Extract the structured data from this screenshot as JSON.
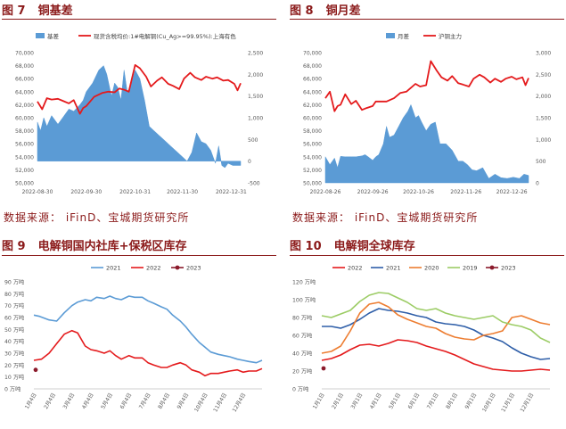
{
  "figures": [
    {
      "number": "图 7",
      "title": "铜基差"
    },
    {
      "number": "图 8",
      "title": "铜月差"
    },
    {
      "number": "图 9",
      "title": "电解铜国内社库+保税区库存"
    },
    {
      "number": "图 10",
      "title": "电解铜全球库存"
    }
  ],
  "sources": [
    "数据来源： iFinD、宝城期货研究所",
    "数据来源： iFinD、宝城期货研究所"
  ],
  "colors": {
    "area": "#5b9bd5",
    "red": "#e41a1c",
    "title": "#8b1a1a"
  },
  "chart_data": [
    {
      "type": "area",
      "title": "",
      "xlabel": "",
      "ylabel": "",
      "x_ticks": [
        "2022-08-30",
        "2022-09-30",
        "2022-10-31",
        "2022-11-30",
        "2022-12-31"
      ],
      "x_range": [
        "2022-08-30",
        "2023-01-06"
      ],
      "ylim": [
        50000,
        70000
      ],
      "y_ticks": [
        50000,
        52000,
        54000,
        56000,
        58000,
        60000,
        62000,
        64000,
        66000,
        68000,
        70000
      ],
      "y2lim": [
        -500,
        2500
      ],
      "y2_ticks": [
        -500,
        0,
        500,
        1000,
        1500,
        2000,
        2500
      ],
      "legend_position": "top",
      "series": [
        {
          "name": "基差",
          "kind": "area",
          "axis": "right",
          "color": "#5b9bd5",
          "x": [
            "2022-08-30",
            "2022-09-01",
            "2022-09-03",
            "2022-09-05",
            "2022-09-08",
            "2022-09-12",
            "2022-09-15",
            "2022-09-19",
            "2022-09-22",
            "2022-09-26",
            "2022-09-28",
            "2022-09-30",
            "2022-10-04",
            "2022-10-08",
            "2022-10-11",
            "2022-10-13",
            "2022-10-16",
            "2022-10-18",
            "2022-10-20",
            "2022-10-22",
            "2022-10-24",
            "2022-10-26",
            "2022-10-28",
            "2022-10-31",
            "2022-11-03",
            "2022-11-06",
            "2022-11-09",
            "2022-11-12",
            "2022-11-15",
            "2022-11-18",
            "2022-11-21",
            "2022-11-24",
            "2022-11-27",
            "2022-11-30",
            "2022-12-03",
            "2022-12-06",
            "2022-12-09",
            "2022-12-12",
            "2022-12-15",
            "2022-12-18",
            "2022-12-21",
            "2022-12-23",
            "2022-12-25",
            "2022-12-27",
            "2022-12-29",
            "2023-01-01",
            "2023-01-04",
            "2023-01-06"
          ],
          "values": [
            900,
            700,
            1000,
            800,
            1050,
            850,
            1000,
            1200,
            1150,
            1300,
            1400,
            1600,
            1800,
            2100,
            2200,
            2000,
            1500,
            1800,
            1700,
            1400,
            2100,
            1600,
            1700,
            2100,
            1900,
            1400,
            800,
            700,
            600,
            500,
            400,
            300,
            200,
            100,
            0,
            200,
            650,
            450,
            400,
            250,
            -50,
            350,
            -100,
            -150,
            -50,
            -100,
            -100,
            -100
          ]
        },
        {
          "name": "现货含税均价:1#电解铜(Cu_Ag>=99.95%):上海有色",
          "kind": "line",
          "axis": "left",
          "color": "#e41a1c",
          "x": [
            "2022-08-30",
            "2022-09-02",
            "2022-09-05",
            "2022-09-08",
            "2022-09-12",
            "2022-09-15",
            "2022-09-19",
            "2022-09-22",
            "2022-09-26",
            "2022-09-28",
            "2022-09-30",
            "2022-10-05",
            "2022-10-10",
            "2022-10-14",
            "2022-10-18",
            "2022-10-21",
            "2022-10-24",
            "2022-10-27",
            "2022-10-31",
            "2022-11-03",
            "2022-11-07",
            "2022-11-10",
            "2022-11-14",
            "2022-11-17",
            "2022-11-21",
            "2022-11-24",
            "2022-11-28",
            "2022-12-01",
            "2022-12-05",
            "2022-12-08",
            "2022-12-12",
            "2022-12-15",
            "2022-12-19",
            "2022-12-22",
            "2022-12-26",
            "2022-12-29",
            "2023-01-02",
            "2023-01-04",
            "2023-01-06"
          ],
          "values": [
            62500,
            61300,
            63000,
            62800,
            62900,
            62600,
            62200,
            62700,
            60600,
            61500,
            61800,
            63200,
            63800,
            64000,
            63900,
            64500,
            64300,
            64000,
            68100,
            67600,
            66300,
            64800,
            65700,
            66200,
            65200,
            64900,
            64400,
            66000,
            66900,
            66200,
            65800,
            66300,
            66000,
            66200,
            65700,
            65800,
            65200,
            64200,
            65300
          ]
        }
      ]
    },
    {
      "type": "area",
      "title": "",
      "xlabel": "",
      "ylabel": "",
      "x_ticks": [
        "2022-08-26",
        "2022-09-26",
        "2022-10-26",
        "2022-11-26",
        "2022-12-26"
      ],
      "x_range": [
        "2022-08-26",
        "2023-01-06"
      ],
      "ylim": [
        50000,
        70000
      ],
      "y_ticks": [
        50000,
        52000,
        54000,
        56000,
        58000,
        60000,
        62000,
        64000,
        66000,
        68000,
        70000
      ],
      "y2lim": [
        0,
        3000
      ],
      "y2_ticks": [
        0,
        500,
        1000,
        1500,
        2000,
        2500,
        3000
      ],
      "legend_position": "top",
      "series": [
        {
          "name": "月差",
          "kind": "area",
          "axis": "right",
          "color": "#5b9bd5",
          "x": [
            "2022-08-26",
            "2022-08-29",
            "2022-09-01",
            "2022-09-03",
            "2022-09-05",
            "2022-09-08",
            "2022-09-12",
            "2022-09-15",
            "2022-09-19",
            "2022-09-21",
            "2022-09-23",
            "2022-09-26",
            "2022-09-28",
            "2022-09-30",
            "2022-10-03",
            "2022-10-05",
            "2022-10-07",
            "2022-10-10",
            "2022-10-13",
            "2022-10-16",
            "2022-10-19",
            "2022-10-21",
            "2022-10-24",
            "2022-10-26",
            "2022-10-28",
            "2022-10-31",
            "2022-11-03",
            "2022-11-06",
            "2022-11-09",
            "2022-11-13",
            "2022-11-17",
            "2022-11-21",
            "2022-11-24",
            "2022-11-27",
            "2022-11-30",
            "2022-12-03",
            "2022-12-07",
            "2022-12-11",
            "2022-12-15",
            "2022-12-19",
            "2022-12-23",
            "2022-12-27",
            "2022-12-31",
            "2023-01-03",
            "2023-01-06"
          ],
          "values": [
            600,
            420,
            570,
            350,
            610,
            600,
            600,
            600,
            620,
            650,
            600,
            520,
            600,
            650,
            900,
            1300,
            1050,
            1100,
            1300,
            1500,
            1650,
            1800,
            1500,
            1550,
            1400,
            1200,
            1350,
            1400,
            900,
            900,
            750,
            500,
            500,
            420,
            300,
            280,
            350,
            100,
            200,
            120,
            100,
            130,
            100,
            200,
            170
          ]
        },
        {
          "name": "沪铜主力",
          "kind": "line",
          "axis": "left",
          "color": "#e41a1c",
          "x": [
            "2022-08-26",
            "2022-08-29",
            "2022-09-01",
            "2022-09-03",
            "2022-09-05",
            "2022-09-08",
            "2022-09-12",
            "2022-09-15",
            "2022-09-19",
            "2022-09-22",
            "2022-09-26",
            "2022-09-28",
            "2022-09-30",
            "2022-10-05",
            "2022-10-10",
            "2022-10-14",
            "2022-10-18",
            "2022-10-21",
            "2022-10-24",
            "2022-10-27",
            "2022-10-31",
            "2022-11-03",
            "2022-11-07",
            "2022-11-10",
            "2022-11-14",
            "2022-11-17",
            "2022-11-21",
            "2022-11-24",
            "2022-11-28",
            "2022-12-01",
            "2022-12-05",
            "2022-12-08",
            "2022-12-12",
            "2022-12-15",
            "2022-12-19",
            "2022-12-22",
            "2022-12-26",
            "2022-12-29",
            "2023-01-02",
            "2023-01-04",
            "2023-01-06"
          ],
          "values": [
            63000,
            64000,
            61000,
            61800,
            62000,
            63600,
            62100,
            62600,
            61200,
            61500,
            61800,
            62500,
            62500,
            62500,
            63000,
            63800,
            64000,
            64600,
            65200,
            64800,
            65000,
            68700,
            67200,
            66200,
            65700,
            66400,
            65300,
            65100,
            64800,
            66000,
            66600,
            66200,
            65400,
            66000,
            65500,
            66000,
            66300,
            65900,
            66200,
            65000,
            66100
          ]
        }
      ]
    },
    {
      "type": "line",
      "title": "",
      "xlabel": "",
      "ylabel": "",
      "categories": [
        "1月4日",
        "2月4日",
        "3月4日",
        "4月4日",
        "5月4日",
        "6月4日",
        "7月4日",
        "8月4日",
        "9月4日",
        "10月4日",
        "11月4日",
        "12月4日"
      ],
      "ylim": [
        0,
        90
      ],
      "y_ticks": [
        "0 万吨",
        "10 万吨",
        "20 万吨",
        "30 万吨",
        "40 万吨",
        "50 万吨",
        "60 万吨",
        "70 万吨",
        "80 万吨",
        "90 万吨"
      ],
      "legend_position": "top",
      "series": [
        {
          "name": "2021",
          "color": "#5b9bd5",
          "x": [
            0,
            0.3,
            0.8,
            1.2,
            1.6,
            2.0,
            2.3,
            2.7,
            3.0,
            3.3,
            3.7,
            4.0,
            4.3,
            4.6,
            5.0,
            5.3,
            5.7,
            6.0,
            6.3,
            6.7,
            7.0,
            7.3,
            7.7,
            8.0,
            8.3,
            8.7,
            9.0,
            9.3,
            9.7,
            10.0,
            10.3,
            10.7,
            11.0,
            11.3,
            11.7,
            12.0
          ],
          "values": [
            62,
            61,
            58,
            57,
            64,
            70,
            73,
            75,
            74,
            77,
            76,
            78,
            76,
            75,
            78,
            77,
            77,
            74,
            72,
            69,
            67,
            62,
            57,
            52,
            46,
            39,
            35,
            31,
            29,
            28,
            27,
            25,
            24,
            23,
            22,
            24
          ]
        },
        {
          "name": "2022",
          "color": "#e41a1c",
          "x": [
            0,
            0.4,
            0.8,
            1.2,
            1.6,
            2.0,
            2.3,
            2.7,
            3.0,
            3.3,
            3.7,
            4.0,
            4.3,
            4.6,
            5.0,
            5.3,
            5.7,
            6.0,
            6.3,
            6.7,
            7.0,
            7.3,
            7.7,
            8.0,
            8.3,
            8.7,
            9.0,
            9.3,
            9.7,
            10.0,
            10.3,
            10.7,
            11.0,
            11.3,
            11.7,
            12.0
          ],
          "values": [
            24,
            25,
            30,
            38,
            46,
            49,
            47,
            36,
            33,
            32,
            30,
            32,
            28,
            25,
            28,
            26,
            26,
            22,
            20,
            18,
            18,
            20,
            22,
            20,
            16,
            14,
            11,
            13,
            13,
            14,
            15,
            16,
            14,
            15,
            15,
            17
          ]
        },
        {
          "name": "2023",
          "color": "#8b1a2b",
          "x": [
            0
          ],
          "values": [
            16
          ]
        }
      ]
    },
    {
      "type": "line",
      "title": "",
      "xlabel": "",
      "ylabel": "",
      "categories": [
        "1月1日",
        "2月1日",
        "3月1日",
        "4月1日",
        "5月1日",
        "6月1日",
        "7月1日",
        "8月1日",
        "9月1日",
        "10月1日",
        "11月1日",
        "12月1日"
      ],
      "ylim": [
        0,
        120
      ],
      "y_ticks": [
        "0 万吨",
        "20 万吨",
        "40 万吨",
        "60 万吨",
        "80 万吨",
        "100 万吨",
        "120 万吨"
      ],
      "legend_position": "top",
      "series": [
        {
          "name": "2022",
          "color": "#e41a1c",
          "x": [
            0,
            0.5,
            1.0,
            1.5,
            2.0,
            2.5,
            3.0,
            3.5,
            4.0,
            4.5,
            5.0,
            5.5,
            6.0,
            6.5,
            7.0,
            7.5,
            8.0,
            8.5,
            9.0,
            9.5,
            10.0,
            10.5,
            11.0,
            11.5,
            12.0
          ],
          "values": [
            32,
            34,
            38,
            44,
            49,
            50,
            48,
            51,
            55,
            54,
            52,
            48,
            45,
            42,
            38,
            33,
            28,
            25,
            22,
            21,
            20,
            20,
            21,
            22,
            21
          ]
        },
        {
          "name": "2021",
          "color": "#2e5ea8",
          "x": [
            0,
            0.5,
            1.0,
            1.5,
            2.0,
            2.5,
            3.0,
            3.5,
            4.0,
            4.5,
            5.0,
            5.5,
            6.0,
            6.5,
            7.0,
            7.5,
            8.0,
            8.5,
            9.0,
            9.5,
            10.0,
            10.5,
            11.0,
            11.5,
            12.0
          ],
          "values": [
            70,
            70,
            68,
            72,
            78,
            85,
            90,
            88,
            87,
            85,
            82,
            80,
            75,
            73,
            72,
            70,
            66,
            60,
            57,
            53,
            46,
            40,
            36,
            33,
            34
          ]
        },
        {
          "name": "2020",
          "color": "#ed7d31",
          "x": [
            0,
            0.5,
            1.0,
            1.5,
            2.0,
            2.5,
            3.0,
            3.5,
            4.0,
            4.5,
            5.0,
            5.5,
            6.0,
            6.5,
            7.0,
            7.5,
            8.0,
            8.5,
            9.0,
            9.5,
            10.0,
            10.5,
            11.0,
            11.5,
            12.0
          ],
          "values": [
            40,
            42,
            48,
            65,
            85,
            95,
            97,
            92,
            83,
            78,
            74,
            70,
            68,
            62,
            58,
            56,
            55,
            60,
            62,
            65,
            80,
            82,
            78,
            74,
            72
          ]
        },
        {
          "name": "2019",
          "color": "#9ccc65",
          "x": [
            0,
            0.5,
            1.0,
            1.5,
            2.0,
            2.5,
            3.0,
            3.5,
            4.0,
            4.5,
            5.0,
            5.5,
            6.0,
            6.5,
            7.0,
            7.5,
            8.0,
            8.5,
            9.0,
            9.5,
            10.0,
            10.5,
            11.0,
            11.5,
            12.0
          ],
          "values": [
            82,
            80,
            84,
            88,
            98,
            105,
            108,
            107,
            102,
            97,
            90,
            88,
            90,
            85,
            82,
            80,
            78,
            80,
            82,
            75,
            72,
            70,
            66,
            57,
            52
          ]
        },
        {
          "name": "2023",
          "color": "#8b1a2b",
          "x": [
            0
          ],
          "values": [
            23
          ]
        }
      ]
    }
  ]
}
